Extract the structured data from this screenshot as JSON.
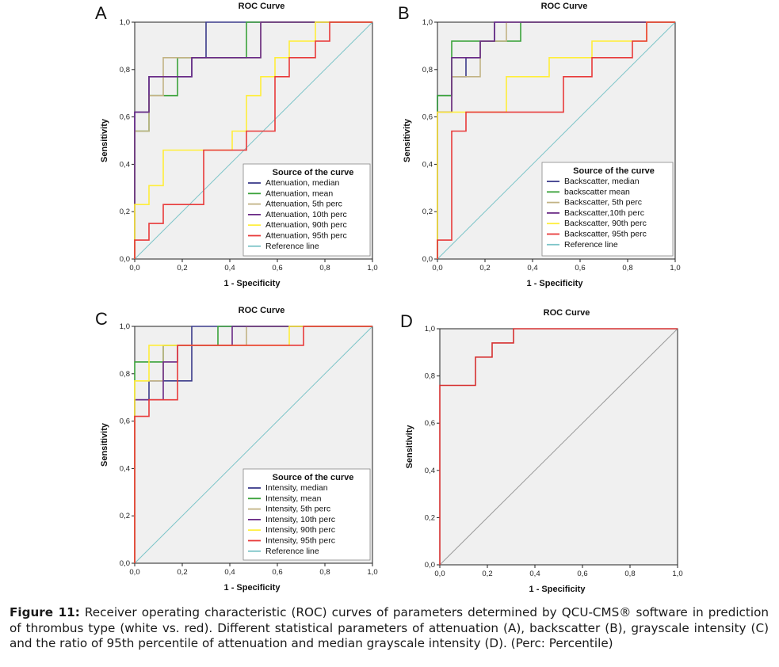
{
  "caption": {
    "label": "Figure 11:",
    "text": "Receiver operating characteristic (ROC) curves of parameters determined by QCU-CMS® software in prediction of thrombus type (white vs. red). Different statistical parameters of attenuation (A), backscatter (B), grayscale intensity (C) and the ratio of 95th percentile of attenuation and median grayscale intensity (D). (Perc: Percentile)"
  },
  "chart_data": [
    {
      "panel": "A",
      "type": "line",
      "title": "ROC Curve",
      "xlabel": "1 - Specificity",
      "ylabel": "Sensitivity",
      "xlim": [
        0,
        1
      ],
      "ylim": [
        0,
        1
      ],
      "xticks": [
        "0,0",
        "0,2",
        "0,4",
        "0,6",
        "0,8",
        "1,0"
      ],
      "yticks": [
        "0,0",
        "0,2",
        "0,4",
        "0,6",
        "0,8",
        "1,0"
      ],
      "legend_title": "Source of the curve",
      "legend_position": "bottom-right",
      "series": [
        {
          "name": "Attenuation, median",
          "color": "#3b3b8a",
          "points": [
            [
              0,
              0
            ],
            [
              0,
              0.62
            ],
            [
              0.06,
              0.62
            ],
            [
              0.06,
              0.77
            ],
            [
              0.24,
              0.77
            ],
            [
              0.24,
              0.85
            ],
            [
              0.3,
              0.85
            ],
            [
              0.3,
              1
            ],
            [
              1,
              1
            ]
          ]
        },
        {
          "name": "Attenuation, mean",
          "color": "#3aa23a",
          "points": [
            [
              0,
              0
            ],
            [
              0,
              0.54
            ],
            [
              0.06,
              0.54
            ],
            [
              0.06,
              0.69
            ],
            [
              0.18,
              0.69
            ],
            [
              0.18,
              0.85
            ],
            [
              0.47,
              0.85
            ],
            [
              0.47,
              1
            ],
            [
              1,
              1
            ]
          ]
        },
        {
          "name": "Attenuation, 5th perc",
          "color": "#c2b384",
          "points": [
            [
              0,
              0
            ],
            [
              0,
              0.54
            ],
            [
              0.06,
              0.54
            ],
            [
              0.06,
              0.69
            ],
            [
              0.12,
              0.69
            ],
            [
              0.12,
              0.85
            ],
            [
              0.53,
              0.85
            ],
            [
              0.53,
              1
            ],
            [
              1,
              1
            ]
          ]
        },
        {
          "name": "Attenuation, 10th perc",
          "color": "#6a2a86",
          "points": [
            [
              0,
              0
            ],
            [
              0,
              0.62
            ],
            [
              0.06,
              0.62
            ],
            [
              0.06,
              0.77
            ],
            [
              0.24,
              0.77
            ],
            [
              0.24,
              0.85
            ],
            [
              0.53,
              0.85
            ],
            [
              0.53,
              1
            ],
            [
              1,
              1
            ]
          ]
        },
        {
          "name": "Attenuation, 90th perc",
          "color": "#ffee3a",
          "points": [
            [
              0,
              0
            ],
            [
              0,
              0.23
            ],
            [
              0.06,
              0.23
            ],
            [
              0.06,
              0.31
            ],
            [
              0.12,
              0.31
            ],
            [
              0.12,
              0.46
            ],
            [
              0.41,
              0.46
            ],
            [
              0.41,
              0.54
            ],
            [
              0.47,
              0.54
            ],
            [
              0.47,
              0.69
            ],
            [
              0.53,
              0.69
            ],
            [
              0.53,
              0.77
            ],
            [
              0.59,
              0.77
            ],
            [
              0.59,
              0.85
            ],
            [
              0.65,
              0.85
            ],
            [
              0.65,
              0.92
            ],
            [
              0.76,
              0.92
            ],
            [
              0.76,
              1
            ],
            [
              1,
              1
            ]
          ]
        },
        {
          "name": "Attenuation, 95th perc",
          "color": "#e83a3a",
          "points": [
            [
              0,
              0
            ],
            [
              0,
              0.08
            ],
            [
              0.06,
              0.08
            ],
            [
              0.06,
              0.15
            ],
            [
              0.12,
              0.15
            ],
            [
              0.12,
              0.23
            ],
            [
              0.29,
              0.23
            ],
            [
              0.29,
              0.46
            ],
            [
              0.47,
              0.46
            ],
            [
              0.47,
              0.54
            ],
            [
              0.59,
              0.54
            ],
            [
              0.59,
              0.77
            ],
            [
              0.65,
              0.77
            ],
            [
              0.65,
              0.85
            ],
            [
              0.76,
              0.85
            ],
            [
              0.76,
              0.92
            ],
            [
              0.82,
              0.92
            ],
            [
              0.82,
              1
            ],
            [
              1,
              1
            ]
          ]
        },
        {
          "name": "Reference line",
          "color": "#7cc4c8",
          "points": [
            [
              0,
              0
            ],
            [
              1,
              1
            ]
          ]
        }
      ]
    },
    {
      "panel": "B",
      "type": "line",
      "title": "ROC Curve",
      "xlabel": "1 - Specificity",
      "ylabel": "Sensitivity",
      "xlim": [
        0,
        1
      ],
      "ylim": [
        0,
        1
      ],
      "xticks": [
        "0,0",
        "0,2",
        "0,4",
        "0,6",
        "0,8",
        "1,0"
      ],
      "yticks": [
        "0,0",
        "0,2",
        "0,4",
        "0,6",
        "0,8",
        "1,0"
      ],
      "legend_title": "Source of the curve",
      "legend_position": "bottom-right",
      "series": [
        {
          "name": "Backscatter, median",
          "color": "#3b3b8a",
          "points": [
            [
              0,
              0
            ],
            [
              0,
              0.69
            ],
            [
              0.06,
              0.69
            ],
            [
              0.06,
              0.77
            ],
            [
              0.12,
              0.77
            ],
            [
              0.12,
              0.85
            ],
            [
              0.18,
              0.85
            ],
            [
              0.18,
              0.92
            ],
            [
              0.24,
              0.92
            ],
            [
              0.24,
              1
            ],
            [
              1,
              1
            ]
          ]
        },
        {
          "name": "backscatter mean",
          "color": "#3aa23a",
          "points": [
            [
              0,
              0
            ],
            [
              0,
              0.69
            ],
            [
              0.06,
              0.69
            ],
            [
              0.06,
              0.92
            ],
            [
              0.35,
              0.92
            ],
            [
              0.35,
              1
            ],
            [
              1,
              1
            ]
          ]
        },
        {
          "name": "Backscatter, 5th perc",
          "color": "#c2b384",
          "points": [
            [
              0,
              0
            ],
            [
              0,
              0.62
            ],
            [
              0.06,
              0.62
            ],
            [
              0.06,
              0.77
            ],
            [
              0.18,
              0.77
            ],
            [
              0.18,
              0.92
            ],
            [
              0.29,
              0.92
            ],
            [
              0.29,
              1
            ],
            [
              1,
              1
            ]
          ]
        },
        {
          "name": "Backscatter,10th perc",
          "color": "#6a2a86",
          "points": [
            [
              0,
              0
            ],
            [
              0,
              0.62
            ],
            [
              0.06,
              0.62
            ],
            [
              0.06,
              0.85
            ],
            [
              0.18,
              0.85
            ],
            [
              0.18,
              0.92
            ],
            [
              0.24,
              0.92
            ],
            [
              0.24,
              1
            ],
            [
              1,
              1
            ]
          ]
        },
        {
          "name": "Backscatter, 90th perc",
          "color": "#ffee3a",
          "points": [
            [
              0,
              0
            ],
            [
              0,
              0.62
            ],
            [
              0.29,
              0.62
            ],
            [
              0.29,
              0.77
            ],
            [
              0.47,
              0.77
            ],
            [
              0.47,
              0.85
            ],
            [
              0.65,
              0.85
            ],
            [
              0.65,
              0.92
            ],
            [
              0.88,
              0.92
            ],
            [
              0.88,
              1
            ],
            [
              1,
              1
            ]
          ]
        },
        {
          "name": "Backscatter, 95th perc",
          "color": "#e83a3a",
          "points": [
            [
              0,
              0
            ],
            [
              0,
              0.08
            ],
            [
              0.06,
              0.08
            ],
            [
              0.06,
              0.54
            ],
            [
              0.12,
              0.54
            ],
            [
              0.12,
              0.62
            ],
            [
              0.53,
              0.62
            ],
            [
              0.53,
              0.77
            ],
            [
              0.65,
              0.77
            ],
            [
              0.65,
              0.85
            ],
            [
              0.82,
              0.85
            ],
            [
              0.82,
              0.92
            ],
            [
              0.88,
              0.92
            ],
            [
              0.88,
              1
            ],
            [
              1,
              1
            ]
          ]
        },
        {
          "name": "Reference line",
          "color": "#7cc4c8",
          "points": [
            [
              0,
              0
            ],
            [
              1,
              1
            ]
          ]
        }
      ]
    },
    {
      "panel": "C",
      "type": "line",
      "title": "ROC Curve",
      "xlabel": "1 - Specificity",
      "ylabel": "Sensitivity",
      "xlim": [
        0,
        1
      ],
      "ylim": [
        0,
        1
      ],
      "xticks": [
        "0,0",
        "0,2",
        "0,4",
        "0,6",
        "0,8",
        "1,0"
      ],
      "yticks": [
        "0,0",
        "0,2",
        "0,4",
        "0,6",
        "0,8",
        "1,0"
      ],
      "legend_title": "Source of the curve",
      "legend_position": "bottom-right",
      "series": [
        {
          "name": "Intensity, median",
          "color": "#3b3b8a",
          "points": [
            [
              0,
              0
            ],
            [
              0,
              0.69
            ],
            [
              0.06,
              0.69
            ],
            [
              0.06,
              0.77
            ],
            [
              0.18,
              0.77
            ],
            [
              0.18,
              0.77
            ],
            [
              0.24,
              0.77
            ],
            [
              0.24,
              1
            ],
            [
              1,
              1
            ]
          ]
        },
        {
          "name": "Intensity, mean",
          "color": "#3aa23a",
          "points": [
            [
              0,
              0
            ],
            [
              0,
              0.85
            ],
            [
              0.12,
              0.85
            ],
            [
              0.12,
              0.92
            ],
            [
              0.35,
              0.92
            ],
            [
              0.35,
              1
            ],
            [
              1,
              1
            ]
          ]
        },
        {
          "name": "Intensity, 5th perc",
          "color": "#c2b384",
          "points": [
            [
              0,
              0
            ],
            [
              0,
              0.77
            ],
            [
              0.12,
              0.77
            ],
            [
              0.12,
              0.92
            ],
            [
              0.47,
              0.92
            ],
            [
              0.47,
              1
            ],
            [
              1,
              1
            ]
          ]
        },
        {
          "name": "Intensity, 10th perc",
          "color": "#6a2a86",
          "points": [
            [
              0,
              0
            ],
            [
              0,
              0.69
            ],
            [
              0.12,
              0.69
            ],
            [
              0.12,
              0.85
            ],
            [
              0.18,
              0.85
            ],
            [
              0.18,
              0.92
            ],
            [
              0.41,
              0.92
            ],
            [
              0.41,
              1
            ],
            [
              1,
              1
            ]
          ]
        },
        {
          "name": "Intensity, 90th perc",
          "color": "#ffee3a",
          "points": [
            [
              0,
              0
            ],
            [
              0,
              0.77
            ],
            [
              0.06,
              0.77
            ],
            [
              0.06,
              0.92
            ],
            [
              0.65,
              0.92
            ],
            [
              0.65,
              1
            ],
            [
              1,
              1
            ]
          ]
        },
        {
          "name": "Intensity, 95th perc",
          "color": "#e83a3a",
          "points": [
            [
              0,
              0
            ],
            [
              0,
              0.62
            ],
            [
              0.06,
              0.62
            ],
            [
              0.06,
              0.69
            ],
            [
              0.18,
              0.69
            ],
            [
              0.18,
              0.92
            ],
            [
              0.71,
              0.92
            ],
            [
              0.71,
              1
            ],
            [
              1,
              1
            ]
          ]
        },
        {
          "name": "Reference line",
          "color": "#7cc4c8",
          "points": [
            [
              0,
              0
            ],
            [
              1,
              1
            ]
          ]
        }
      ]
    },
    {
      "panel": "D",
      "type": "line",
      "title": "ROC Curve",
      "xlabel": "1 - Specificity",
      "ylabel": "Sensitivity",
      "xlim": [
        0,
        1
      ],
      "ylim": [
        0,
        1
      ],
      "xticks": [
        "0,0",
        "0,2",
        "0,4",
        "0,6",
        "0,8",
        "1,0"
      ],
      "yticks": [
        "0,0",
        "0,2",
        "0,4",
        "0,6",
        "0,8",
        "1,0"
      ],
      "legend_title": "",
      "legend_position": "none",
      "series": [
        {
          "name": "Ratio of 95th percentile attenuation and median intensity",
          "color": "#d63030",
          "points": [
            [
              0,
              0
            ],
            [
              0,
              0.76
            ],
            [
              0.15,
              0.76
            ],
            [
              0.15,
              0.88
            ],
            [
              0.22,
              0.88
            ],
            [
              0.22,
              0.94
            ],
            [
              0.31,
              0.94
            ],
            [
              0.31,
              1
            ],
            [
              1,
              1
            ]
          ]
        },
        {
          "name": "Reference line",
          "color": "#9a9a9a",
          "points": [
            [
              0,
              0
            ],
            [
              1,
              1
            ]
          ]
        }
      ]
    }
  ]
}
